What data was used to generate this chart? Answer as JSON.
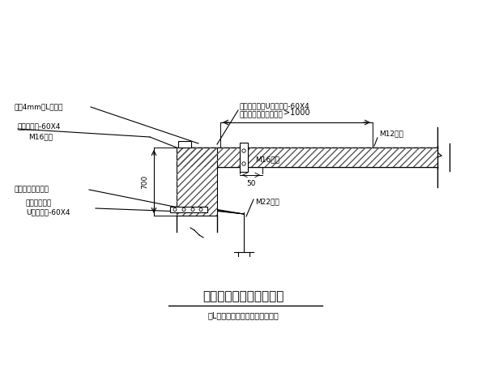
{
  "bg_color": "#ffffff",
  "line_color": "#000000",
  "title": "梁面芳纶纤维锁固（一）",
  "subtitle": "（L形钉板参数及中宽度见表一）",
  "label_tl1": "粘贴4mm厚L形钉板",
  "label_tl2": "横向钉压板-60X4",
  "label_tl3": "M16锶栓",
  "label_ml1": "加焺顶板（预焺）",
  "label_ml2": "胶粘于棁上的",
  "label_ml3": "U形钉箍板-60X4",
  "label_tr1": "胶粘于棁上的U形钉箍板-60X4",
  "label_tr2": "板上钓孔彩孔插入箍板",
  "label_m12": "M12锶栓",
  "label_m16r": "M16锶栓",
  "label_m22": "M22锶栓",
  "label_700": "700",
  "label_50": "50",
  "label_1000": ">1000",
  "figsize": [
    6.21,
    4.54
  ],
  "dpi": 100
}
